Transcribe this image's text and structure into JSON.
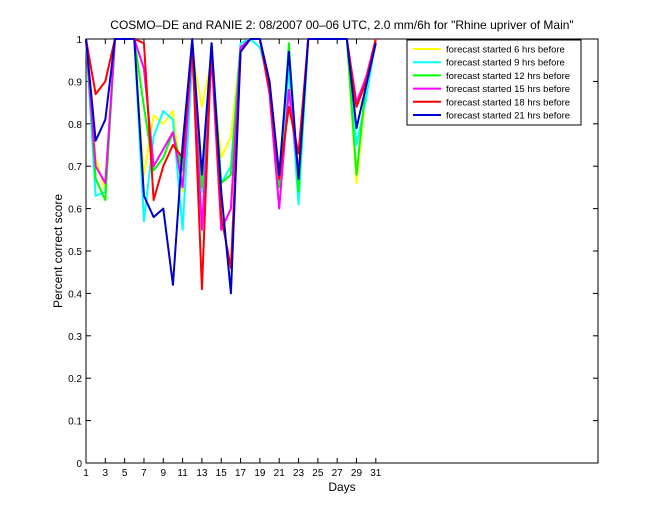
{
  "chart_data": {
    "type": "line",
    "title": "COSMO–DE and RANIE 2: 08/2007 00–06 UTC, 2.0 mm/6h for \"Rhine upriver of Main\"",
    "xlabel": "Days",
    "ylabel": "Percent correct score",
    "xlim": [
      1,
      54
    ],
    "ylim": [
      0,
      1
    ],
    "x_ticks": [
      1,
      3,
      5,
      7,
      9,
      11,
      13,
      15,
      17,
      19,
      21,
      23,
      25,
      27,
      29,
      31
    ],
    "y_ticks": [
      0,
      0.1,
      0.2,
      0.3,
      0.4,
      0.5,
      0.6,
      0.7,
      0.8,
      0.9,
      1
    ],
    "x_tick_labels": [
      "1",
      "3",
      "5",
      "7",
      "9",
      "11",
      "13",
      "15",
      "17",
      "19",
      "21",
      "23",
      "25",
      "27",
      "29",
      "31"
    ],
    "y_tick_labels": [
      "0",
      "0.1",
      "0.2",
      "0.3",
      "0.4",
      "0.5",
      "0.6",
      "0.7",
      "0.8",
      "0.9",
      "1"
    ],
    "legend_position": "top-right",
    "grid": false,
    "x": [
      1,
      2,
      3,
      4,
      5,
      6,
      7,
      8,
      9,
      10,
      11,
      12,
      13,
      14,
      15,
      16,
      17,
      18,
      19,
      20,
      21,
      22,
      23,
      24,
      25,
      26,
      27,
      28,
      29,
      30,
      31
    ],
    "series": [
      {
        "name": "forecast started 6 hrs before",
        "color": "#ffff00",
        "values": [
          1,
          0.72,
          0.64,
          1,
          1,
          1,
          0.68,
          0.82,
          0.8,
          0.83,
          0.64,
          0.97,
          0.84,
          0.95,
          0.72,
          0.77,
          0.98,
          1,
          1,
          0.9,
          0.65,
          0.93,
          0.67,
          1,
          1,
          1,
          1,
          1,
          0.66,
          0.88,
          1
        ]
      },
      {
        "name": "forecast started 9 hrs before",
        "color": "#00ffff",
        "values": [
          1,
          0.63,
          0.64,
          1,
          1,
          1,
          0.57,
          0.77,
          0.83,
          0.81,
          0.55,
          0.95,
          0.64,
          0.99,
          0.66,
          0.7,
          0.99,
          1,
          0.98,
          0.89,
          0.66,
          0.93,
          0.61,
          1,
          1,
          1,
          1,
          1,
          0.75,
          0.86,
          1
        ]
      },
      {
        "name": "forecast started 12 hrs before",
        "color": "#00ff00",
        "values": [
          1,
          0.67,
          0.62,
          1,
          1,
          1,
          0.84,
          0.69,
          0.72,
          0.78,
          0.69,
          0.99,
          0.65,
          0.97,
          0.66,
          0.68,
          0.98,
          1,
          1,
          0.89,
          0.65,
          0.99,
          0.64,
          1,
          1,
          1,
          1,
          1,
          0.68,
          0.9,
          1
        ]
      },
      {
        "name": "forecast started 15 hrs before",
        "color": "#ff00ff",
        "values": [
          1,
          0.7,
          0.66,
          1,
          1,
          1,
          0.93,
          0.7,
          0.74,
          0.78,
          0.65,
          0.98,
          0.55,
          0.96,
          0.55,
          0.6,
          0.98,
          1,
          1,
          0.87,
          0.6,
          0.88,
          0.68,
          1,
          1,
          1,
          1,
          1,
          0.85,
          0.91,
          1
        ]
      },
      {
        "name": "forecast started 18 hrs before",
        "color": "#ff0000",
        "values": [
          1,
          0.87,
          0.9,
          1,
          1,
          1,
          0.99,
          0.62,
          0.7,
          0.75,
          0.72,
          0.99,
          0.41,
          0.99,
          0.58,
          0.46,
          0.97,
          1,
          1,
          0.88,
          0.67,
          0.84,
          0.73,
          1,
          1,
          1,
          1,
          1,
          0.84,
          0.9,
          1
        ]
      },
      {
        "name": "forecast started 21 hrs before",
        "color": "#0000cc",
        "values": [
          1,
          0.76,
          0.81,
          1,
          1,
          1,
          0.63,
          0.58,
          0.6,
          0.42,
          0.75,
          1,
          0.68,
          0.99,
          0.64,
          0.4,
          0.97,
          1,
          1,
          0.9,
          0.68,
          0.97,
          0.67,
          1,
          1,
          1,
          1,
          1,
          0.79,
          0.89,
          0.99
        ]
      }
    ]
  }
}
